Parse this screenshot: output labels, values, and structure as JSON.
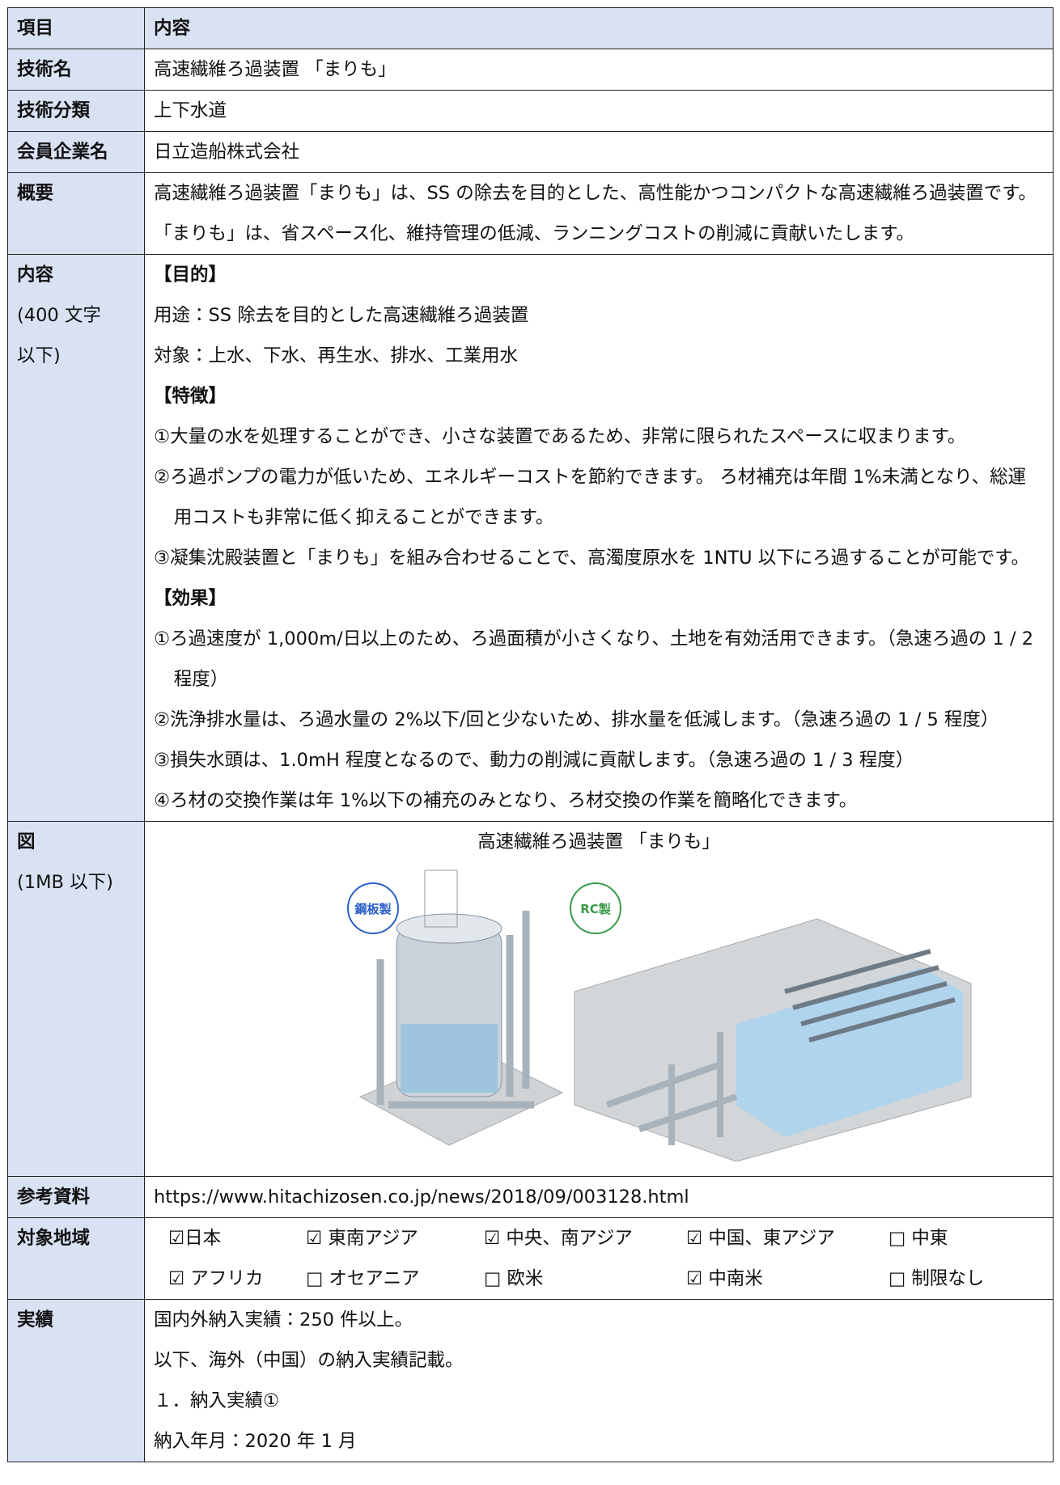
{
  "table": {
    "header": [
      "項目",
      "内容"
    ],
    "rows": [
      {
        "label": [
          "技術名"
        ],
        "lines": [
          "高速繊維ろ過装置 「まりも」"
        ]
      },
      {
        "label": [
          "技術分類"
        ],
        "lines": [
          "上下水道"
        ]
      },
      {
        "label": [
          "会員企業名"
        ],
        "lines": [
          "日立造船株式会社"
        ]
      },
      {
        "label": [
          "概要"
        ],
        "lines": [
          "高速繊維ろ過装置「まりも」は、SS の除去を目的とした、高性能かつコンパクトな高速繊維ろ過装置です。「まりも」は、省スペース化、維持管理の低減、ランニングコストの削減に貢献いたします。"
        ]
      },
      {
        "label": [
          "内容",
          "(400 文字",
          "以下)"
        ],
        "lines": [
          "【目的】",
          "用途：SS 除去を目的とした高速繊維ろ過装置",
          "対象：上水、下水、再生水、排水、工業用水",
          "【特徴】",
          "①大量の水を処理することができ、小さな装置であるため、非常に限られたスペースに収まります。",
          "②ろ過ポンプの電力が低いため、エネルギーコストを節約できます。 ろ材補充は年間 1%未満となり、総運用コストも非常に低く抑えることができます。",
          "③凝集沈殿装置と「まりも」を組み合わせることで、高濁度原水を 1NTU 以下にろ過することが可能です。",
          "【効果】",
          "①ろ過速度が 1,000m/日以上のため、ろ過面積が小さくなり、土地を有効活用できます。（急速ろ過の 1 / 2 程度）",
          "②洗浄排水量は、ろ過水量の 2%以下/回と少ないため、排水量を低減します。（急速ろ過の 1 / 5 程度）",
          "③損失水頭は、1.0mH 程度となるので、動力の削減に貢献します。（急速ろ過の 1 / 3 程度）",
          "④ろ材の交換作業は年 1%以下の補充のみとなり、ろ材交換の作業を簡略化できます。"
        ]
      },
      {
        "label": [
          "図",
          "(1MB 以下)"
        ],
        "caption": "高速繊維ろ過装置 「まりも」",
        "badges": [
          "鋼板製",
          "RC製"
        ]
      },
      {
        "label": [
          "参考資料"
        ],
        "lines": [
          "https://www.hitachizosen.co.jp/news/2018/09/003128.html"
        ]
      },
      {
        "label": [
          "対象地域"
        ],
        "regions": [
          "☑日本",
          "☑ 東南アジア",
          "☑ 中央、南アジア",
          "☑ 中国、東アジア",
          "□ 中東",
          "☑ アフリカ",
          "□ オセアニア",
          "□ 欧米",
          "☑ 中南米",
          "□ 制限なし"
        ]
      },
      {
        "label": [
          "実績"
        ],
        "lines": [
          "国内外納入実績：250 件以上。",
          "以下、海外（中国）の納入実績記載。",
          "１．納入実績①",
          "納入年月：2020 年 1 月"
        ]
      }
    ]
  }
}
